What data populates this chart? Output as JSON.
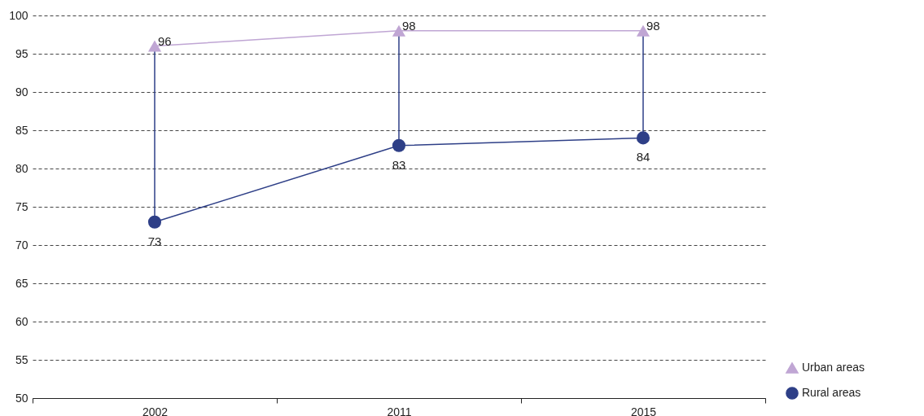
{
  "chart_data": {
    "type": "line",
    "categories": [
      "2002",
      "2011",
      "2015"
    ],
    "series": [
      {
        "name": "Urban areas",
        "color": "#c0a6d4",
        "marker": "triangle",
        "values": [
          96,
          98,
          98
        ]
      },
      {
        "name": "Rural areas",
        "color": "#2e3f87",
        "marker": "circle",
        "values": [
          73,
          83,
          84
        ]
      }
    ],
    "ylim": [
      50,
      100
    ],
    "yticks": [
      50,
      55,
      60,
      65,
      70,
      75,
      80,
      85,
      90,
      95,
      100
    ],
    "grid": "y",
    "legend": "bottom right",
    "data_labels": true
  }
}
